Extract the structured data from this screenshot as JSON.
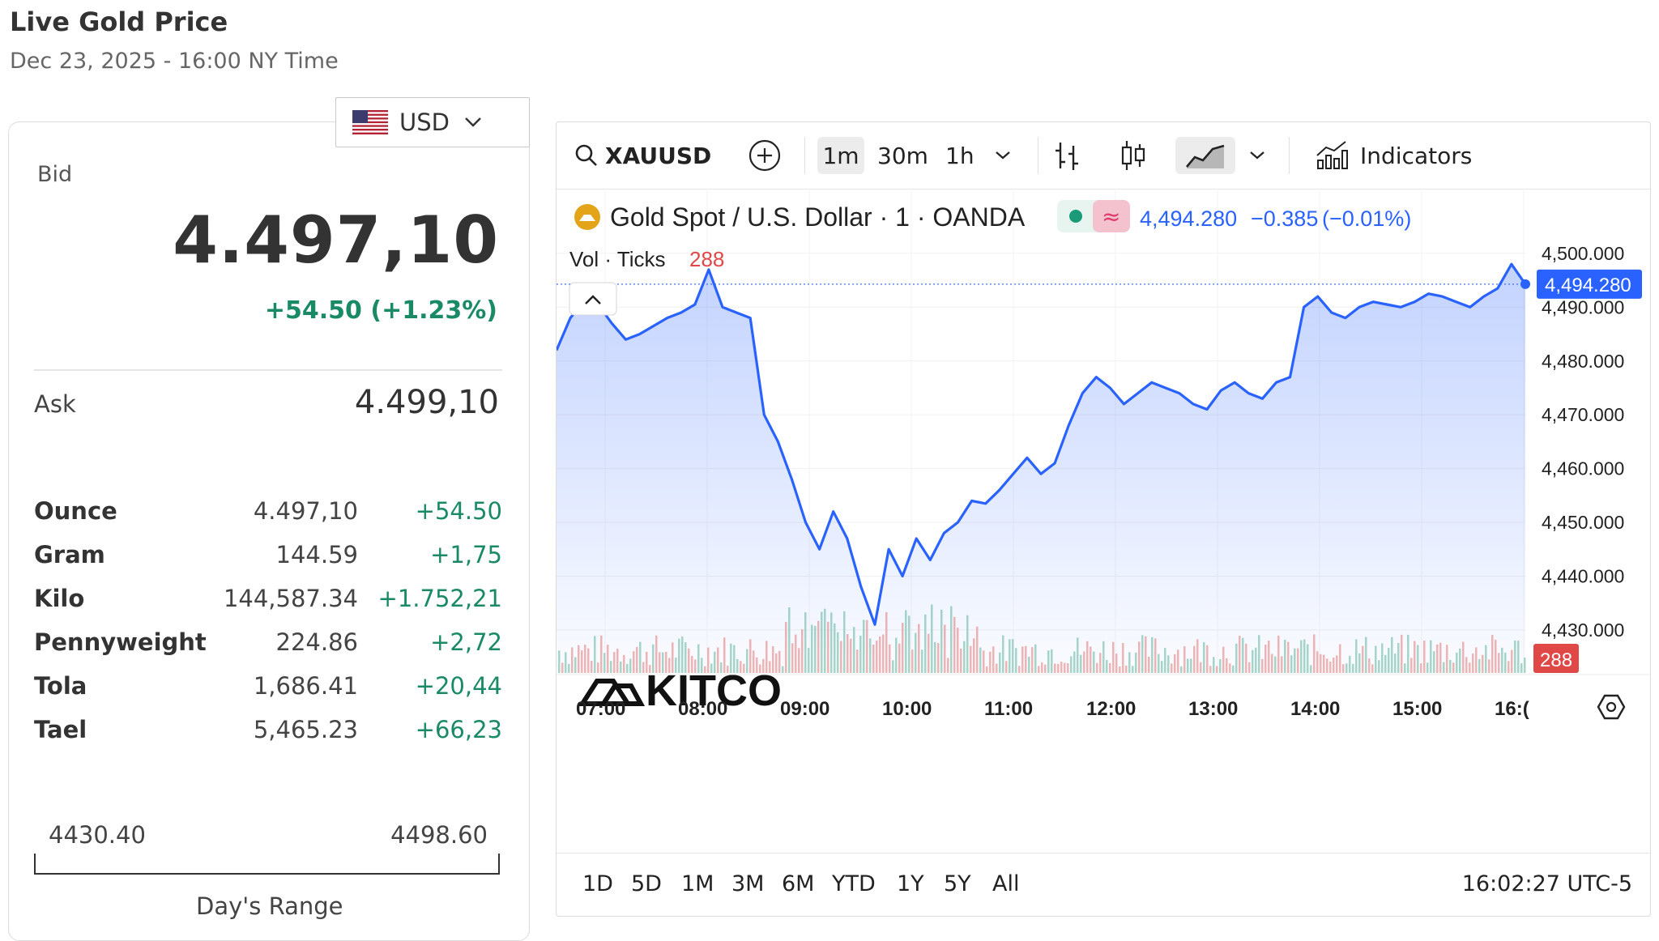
{
  "page": {
    "title": "Live Gold Price",
    "timestamp": "Dec 23, 2025 - 16:00 NY Time"
  },
  "currency": {
    "code": "USD",
    "flag_icon": "us-flag-icon"
  },
  "quote": {
    "bid_label": "Bid",
    "bid_value": "4.497,10",
    "bid_change": "+54.50 (+1.23%)",
    "ask_label": "Ask",
    "ask_value": "4.499,10",
    "up_color": "#1a8a66"
  },
  "units": [
    {
      "name": "Ounce",
      "price": "4.497,10",
      "change": "+54.50"
    },
    {
      "name": "Gram",
      "price": "144.59",
      "change": "+1,75"
    },
    {
      "name": "Kilo",
      "price": "144,587.34",
      "change": "+1.752,21"
    },
    {
      "name": "Pennyweight",
      "price": "224.86",
      "change": "+2,72"
    },
    {
      "name": "Tola",
      "price": "1,686.41",
      "change": "+20,44"
    },
    {
      "name": "Tael",
      "price": "5,465.23",
      "change": "+66,23"
    }
  ],
  "day_range": {
    "low": "4430.40",
    "high": "4498.60",
    "caption": "Day's Range"
  },
  "toolbar": {
    "symbol": "XAUUSD",
    "intervals": [
      "1m",
      "30m",
      "1h"
    ],
    "active_interval": "1m",
    "indicators_label": "Indicators"
  },
  "legend": {
    "title": "Gold Spot / U.S. Dollar · 1 · OANDA",
    "badge_symbol": "≈",
    "last": "4,494.280",
    "change": "−0.385",
    "change_pct": "(−0.01%)",
    "vol_label": "Vol · Ticks",
    "vol_value": "288",
    "watermark": "KITCO"
  },
  "chart_data": {
    "type": "area",
    "series": [
      {
        "values": [
          4482.0,
          4488.0,
          4491.0,
          4490.5,
          4487.0,
          4484.0,
          4485.0,
          4486.5,
          4488.0,
          4489.0,
          4490.5,
          4497.0,
          4490.0,
          4489.0,
          4488.0,
          4470.0,
          4465.0,
          4458.0,
          4450.0,
          4445.0,
          4452.0,
          4447.0,
          4438.0,
          4431.0,
          4445.0,
          4440.0,
          4447.0,
          4443.0,
          4448.0,
          4450.0,
          4454.0,
          4453.5,
          4456.0,
          4459.0,
          4462.0,
          4459.0,
          4461.0,
          4468.0,
          4474.0,
          4477.0,
          4475.0,
          4472.0,
          4474.0,
          4476.0,
          4475.0,
          4474.0,
          4472.0,
          4471.0,
          4474.5,
          4476.0,
          4474.0,
          4473.0,
          4476.0,
          4477.0,
          4490.0,
          4492.0,
          4489.0,
          4488.0,
          4490.0,
          4491.0,
          4490.5,
          4490.0,
          4491.0,
          4492.5,
          4492.0,
          4491.0,
          4490.0,
          4492.0,
          4493.5,
          4498.0,
          4494.28
        ]
      }
    ],
    "x_ticks": [
      "07:00",
      "08:00",
      "09:00",
      "10:00",
      "11:00",
      "12:00",
      "13:00",
      "14:00",
      "15:00",
      "16:("
    ],
    "y_ticks": [
      "4,500.000",
      "4,490.000",
      "4,480.000",
      "4,470.000",
      "4,460.000",
      "4,450.000",
      "4,440.000",
      "4,430.000"
    ],
    "ylim": [
      4422,
      4503
    ],
    "last_price_label": "4,494.280",
    "volume_label": "288",
    "line_color": "#2962ff",
    "volume_up_color": "#a8d8c8",
    "volume_down_color": "#f4b6b3"
  },
  "ranges": [
    "1D",
    "5D",
    "1M",
    "3M",
    "6M",
    "YTD",
    "1Y",
    "5Y",
    "All"
  ],
  "clock": "16:02:27 UTC-5"
}
